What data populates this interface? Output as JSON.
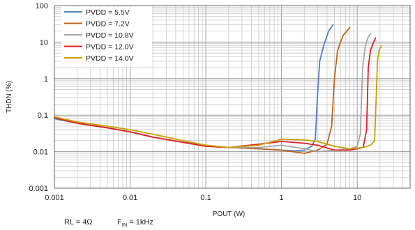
{
  "chart_data": {
    "type": "line",
    "title": "",
    "xlabel": "POUT (W)",
    "ylabel": "THDN (%)",
    "xscale": "log",
    "yscale": "log",
    "xlim": [
      0.001,
      50
    ],
    "ylim": [
      0.001,
      100
    ],
    "x_ticks": [
      "0.001",
      "0.01",
      "0.1",
      "1",
      "10"
    ],
    "y_ticks": [
      "0.001",
      "0.01",
      "0.1",
      "1",
      "10",
      "100"
    ],
    "grid": true,
    "legend_position": "top-left",
    "series": [
      {
        "name": "PVDD = 5.5V",
        "color": "#4f81bd",
        "points": [
          [
            0.001,
            0.08
          ],
          [
            0.002,
            0.06
          ],
          [
            0.005,
            0.045
          ],
          [
            0.01,
            0.035
          ],
          [
            0.02,
            0.025
          ],
          [
            0.05,
            0.018
          ],
          [
            0.1,
            0.015
          ],
          [
            0.2,
            0.013
          ],
          [
            0.5,
            0.012
          ],
          [
            1,
            0.011
          ],
          [
            1.5,
            0.0105
          ],
          [
            2,
            0.011
          ],
          [
            2.5,
            0.014
          ],
          [
            2.8,
            0.022
          ],
          [
            3.0,
            0.4
          ],
          [
            3.2,
            3
          ],
          [
            3.6,
            8
          ],
          [
            4.2,
            20
          ],
          [
            4.8,
            30
          ]
        ]
      },
      {
        "name": "PVDD = 7.2V",
        "color": "#c0651e",
        "points": [
          [
            0.001,
            0.085
          ],
          [
            0.002,
            0.06
          ],
          [
            0.005,
            0.045
          ],
          [
            0.01,
            0.035
          ],
          [
            0.02,
            0.025
          ],
          [
            0.05,
            0.018
          ],
          [
            0.1,
            0.014
          ],
          [
            0.2,
            0.013
          ],
          [
            0.5,
            0.012
          ],
          [
            1,
            0.011
          ],
          [
            2,
            0.009
          ],
          [
            3,
            0.011
          ],
          [
            4,
            0.016
          ],
          [
            4.6,
            0.05
          ],
          [
            5,
            1
          ],
          [
            5.5,
            6
          ],
          [
            6.5,
            15
          ],
          [
            8,
            25
          ]
        ]
      },
      {
        "name": "PVDD = 10.8V",
        "color": "#a6a6a6",
        "points": [
          [
            0.001,
            0.085
          ],
          [
            0.002,
            0.06
          ],
          [
            0.005,
            0.045
          ],
          [
            0.01,
            0.035
          ],
          [
            0.02,
            0.025
          ],
          [
            0.05,
            0.018
          ],
          [
            0.1,
            0.014
          ],
          [
            0.2,
            0.013
          ],
          [
            0.5,
            0.013
          ],
          [
            1,
            0.015
          ],
          [
            2,
            0.012
          ],
          [
            3,
            0.01
          ],
          [
            5,
            0.011
          ],
          [
            8,
            0.012
          ],
          [
            10,
            0.014
          ],
          [
            11,
            0.03
          ],
          [
            11.8,
            2
          ],
          [
            12.8,
            8
          ],
          [
            14,
            14
          ],
          [
            15,
            17
          ]
        ]
      },
      {
        "name": "PVDD = 12.0V",
        "color": "#e02020",
        "points": [
          [
            0.001,
            0.085
          ],
          [
            0.002,
            0.06
          ],
          [
            0.005,
            0.045
          ],
          [
            0.01,
            0.035
          ],
          [
            0.02,
            0.025
          ],
          [
            0.05,
            0.018
          ],
          [
            0.1,
            0.014
          ],
          [
            0.2,
            0.013
          ],
          [
            0.5,
            0.016
          ],
          [
            1,
            0.019
          ],
          [
            2,
            0.017
          ],
          [
            3,
            0.015
          ],
          [
            5,
            0.011
          ],
          [
            8,
            0.011
          ],
          [
            12,
            0.013
          ],
          [
            13.3,
            0.04
          ],
          [
            14,
            2
          ],
          [
            15,
            6
          ],
          [
            16.5,
            10
          ],
          [
            17.5,
            13
          ]
        ]
      },
      {
        "name": "PVDD = 14.0V",
        "color": "#c8a000",
        "points": [
          [
            0.001,
            0.09
          ],
          [
            0.002,
            0.065
          ],
          [
            0.005,
            0.05
          ],
          [
            0.01,
            0.04
          ],
          [
            0.02,
            0.03
          ],
          [
            0.05,
            0.02
          ],
          [
            0.1,
            0.015
          ],
          [
            0.2,
            0.013
          ],
          [
            0.5,
            0.015
          ],
          [
            1,
            0.022
          ],
          [
            2,
            0.021
          ],
          [
            3,
            0.019
          ],
          [
            5,
            0.014
          ],
          [
            8,
            0.012
          ],
          [
            12,
            0.013
          ],
          [
            15,
            0.015
          ],
          [
            17,
            0.02
          ],
          [
            18,
            0.5
          ],
          [
            18.5,
            3
          ],
          [
            19.5,
            6
          ],
          [
            21,
            8
          ]
        ]
      }
    ]
  },
  "footer": {
    "rl": "RL = 4Ω",
    "fin_prefix": "F",
    "fin_sub": "IN",
    "fin_value": " = 1kHz"
  }
}
